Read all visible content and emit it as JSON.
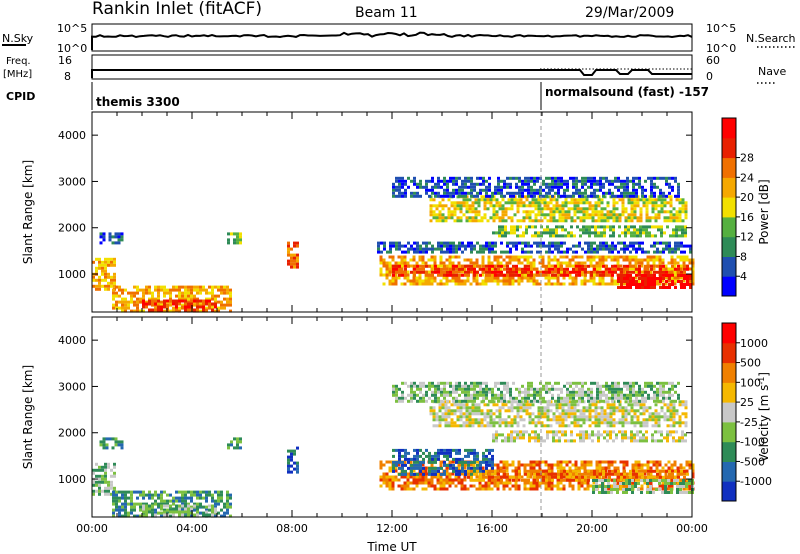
{
  "header": {
    "station": "Rankin Inlet (fitACF)",
    "beam": "Beam 11",
    "date": "29/Mar/2009"
  },
  "nsky_panel": {
    "left_label": "N.Sky",
    "right_label": "N.Search",
    "left_ticks": [
      "10^5",
      "10^0"
    ],
    "right_ticks": [
      "10^5",
      "10^0"
    ]
  },
  "freq_panel": {
    "left_label_1": "Freq.",
    "left_label_2": "[MHz]",
    "right_label": "Nave",
    "left_ticks": [
      "16",
      "8"
    ],
    "right_ticks": [
      "60",
      "0"
    ]
  },
  "cpid_panel": {
    "label": "CPID",
    "mode_1": "themis 3300",
    "mode_2": "normalsound (fast) -157"
  },
  "colors": {
    "power_scale": [
      "#0000ff",
      "#1f4fb0",
      "#2e8b57",
      "#55b040",
      "#f2e000",
      "#f5a800",
      "#f07000",
      "#e82000",
      "#ff0000"
    ],
    "velocity_scale": [
      "#1030c0",
      "#2468b0",
      "#2e8b57",
      "#7cc040",
      "#c8c8c8",
      "#f5b800",
      "#f08000",
      "#e83000",
      "#ff0000"
    ]
  },
  "chart_data": [
    {
      "type": "heatmap",
      "name": "power",
      "xlabel": "",
      "ylabel": "Slant Range [km]",
      "xlim": [
        0,
        24
      ],
      "ylim": [
        180,
        4500
      ],
      "yticks": [
        "1000",
        "2000",
        "3000",
        "4000"
      ],
      "colorbar_label": "Power [dB]",
      "colorbar_ticks": [
        "4",
        "8",
        "12",
        "16",
        "20",
        "24",
        "28"
      ],
      "bands": [
        {
          "t0": 0.0,
          "t1": 0.9,
          "r0": 700,
          "r1": 1350,
          "level": 5
        },
        {
          "t0": 0.3,
          "t1": 1.2,
          "r0": 1650,
          "r1": 1900,
          "level": 1
        },
        {
          "t0": 0.8,
          "t1": 5.6,
          "r0": 200,
          "r1": 750,
          "level": 5
        },
        {
          "t0": 2.0,
          "t1": 5.0,
          "r0": 220,
          "r1": 450,
          "level": 7
        },
        {
          "t0": 5.4,
          "t1": 6.0,
          "r0": 1650,
          "r1": 1900,
          "level": 3
        },
        {
          "t0": 7.8,
          "t1": 8.2,
          "r0": 1150,
          "r1": 1700,
          "level": 6
        },
        {
          "t0": 11.5,
          "t1": 24.0,
          "r0": 800,
          "r1": 1400,
          "level": 5
        },
        {
          "t0": 12.0,
          "t1": 23.8,
          "r0": 950,
          "r1": 1200,
          "level": 7
        },
        {
          "t0": 11.4,
          "t1": 24.0,
          "r0": 1450,
          "r1": 1700,
          "level": 1
        },
        {
          "t0": 13.5,
          "t1": 23.8,
          "r0": 2150,
          "r1": 2700,
          "level": 4
        },
        {
          "t0": 16.0,
          "t1": 23.8,
          "r0": 1850,
          "r1": 2050,
          "level": 3
        },
        {
          "t0": 12.0,
          "t1": 23.5,
          "r0": 2700,
          "r1": 3100,
          "level": 1
        },
        {
          "t0": 21.0,
          "t1": 24.0,
          "r0": 700,
          "r1": 1000,
          "level": 8
        }
      ]
    },
    {
      "type": "heatmap",
      "name": "velocity",
      "xlabel": "Time UT",
      "ylabel": "Slant Range [km]",
      "xlim": [
        0,
        24
      ],
      "ylim": [
        180,
        4500
      ],
      "xticks": [
        "00:00",
        "04:00",
        "08:00",
        "12:00",
        "16:00",
        "20:00",
        "00:00"
      ],
      "yticks": [
        "1000",
        "2000",
        "3000",
        "4000"
      ],
      "colorbar_label": "Velocity [m s^-1]",
      "colorbar_ticks": [
        "1000",
        "500",
        "100",
        "25",
        "-25",
        "-100",
        "-500",
        "-1000"
      ],
      "bands": [
        {
          "t0": 0.0,
          "t1": 0.9,
          "r0": 700,
          "r1": 1350,
          "level": 3
        },
        {
          "t0": 0.3,
          "t1": 1.2,
          "r0": 1650,
          "r1": 1900,
          "level": 2
        },
        {
          "t0": 0.8,
          "t1": 5.6,
          "r0": 200,
          "r1": 750,
          "level": 2
        },
        {
          "t0": 2.0,
          "t1": 5.0,
          "r0": 220,
          "r1": 450,
          "level": 3
        },
        {
          "t0": 5.4,
          "t1": 6.0,
          "r0": 1650,
          "r1": 1900,
          "level": 2
        },
        {
          "t0": 7.8,
          "t1": 8.2,
          "r0": 1150,
          "r1": 1700,
          "level": 1
        },
        {
          "t0": 11.5,
          "t1": 24.0,
          "r0": 800,
          "r1": 1400,
          "level": 6
        },
        {
          "t0": 12.0,
          "t1": 16.0,
          "r0": 1100,
          "r1": 1650,
          "level": 1
        },
        {
          "t0": 15.0,
          "t1": 23.8,
          "r0": 950,
          "r1": 1200,
          "level": 6
        },
        {
          "t0": 20.0,
          "t1": 24.0,
          "r0": 700,
          "r1": 1000,
          "level": 3
        },
        {
          "t0": 13.5,
          "t1": 23.8,
          "r0": 2150,
          "r1": 2700,
          "level": 4
        },
        {
          "t0": 16.0,
          "t1": 23.8,
          "r0": 1850,
          "r1": 2050,
          "level": 4
        },
        {
          "t0": 12.0,
          "t1": 23.5,
          "r0": 2700,
          "r1": 3100,
          "level": 3
        }
      ]
    }
  ]
}
